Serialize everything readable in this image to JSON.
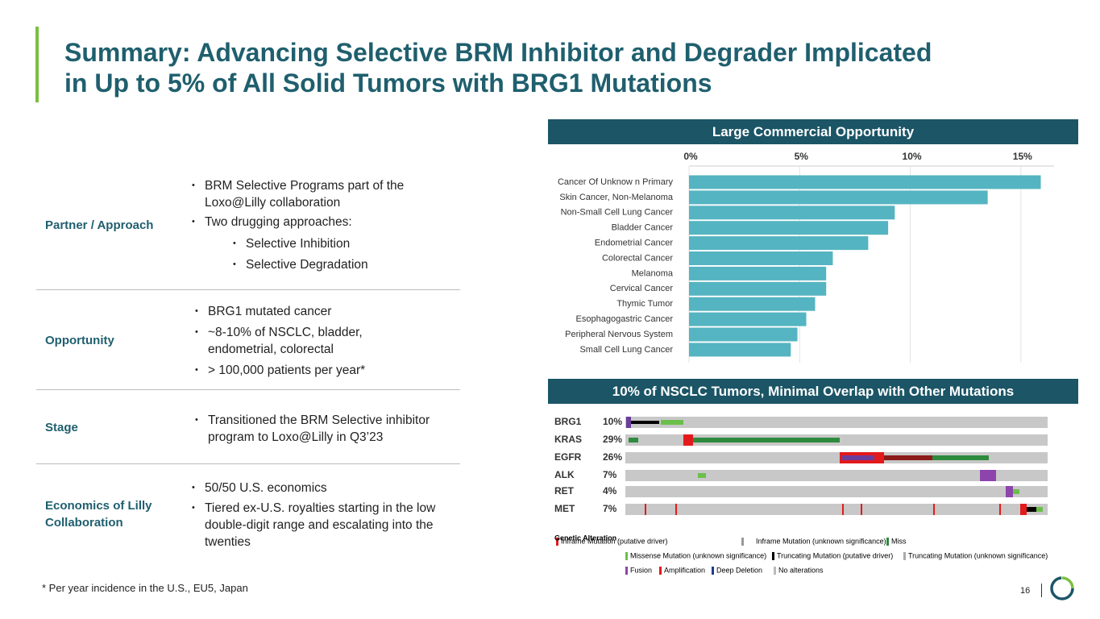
{
  "header": {
    "title_lines": [
      "Summary: Advancing Selective BRM Inhibitor and Degrader Implicated",
      "in Up to 5% of All Solid Tumors with BRG1 Mutations"
    ]
  },
  "table": {
    "rows": [
      {
        "label": "Partner / Approach",
        "bullets": [
          "BRM Selective Programs part of the Loxo@Lilly collaboration",
          "Two drugging approaches:"
        ],
        "sub_bullets": [
          "Selective Inhibition",
          "Selective Degradation"
        ]
      },
      {
        "label": "Opportunity",
        "bullets": [
          "BRG1 mutated cancer",
          "~8-10% of NSCLC, bladder, endometrial, colorectal",
          "> 100,000 patients per year*"
        ]
      },
      {
        "label": "Stage",
        "bullets": [
          "Transitioned the BRM Selective inhibitor program to Loxo@Lilly in Q3’23"
        ]
      },
      {
        "label": "Economics of Lilly Collaboration",
        "bullets": [
          "50/50 U.S. economics",
          "Tiered ex-U.S. royalties starting in the low double-digit range and escalating into the twenties"
        ]
      }
    ]
  },
  "footnote": "* Per year incidence in the U.S., EU5, Japan",
  "page_number": "16",
  "bar_chart": {
    "type": "bar",
    "title": "Large Commercial Opportunity",
    "color": "#55b4c1",
    "categories": [
      "Cancer Of Unknow n Primary",
      "Skin Cancer, Non-Melanoma",
      "Non-Small Cell Lung Cancer",
      "Bladder Cancer",
      "Endometrial Cancer",
      "Colorectal Cancer",
      "Melanoma",
      "Cervical Cancer",
      "Thymic Tumor",
      "Esophagogastric Cancer",
      "Peripheral Nervous System",
      "Small Cell Lung Cancer"
    ],
    "values": [
      15.9,
      13.5,
      9.3,
      9.0,
      8.1,
      6.5,
      6.2,
      6.2,
      5.7,
      5.3,
      4.9,
      4.6
    ],
    "xlim": [
      0,
      16.5
    ],
    "xticks": [
      {
        "value": 0,
        "label": "0%"
      },
      {
        "value": 5,
        "label": "5%"
      },
      {
        "value": 10,
        "label": "10%"
      },
      {
        "value": 15,
        "label": "15%"
      }
    ],
    "grid": true
  },
  "oncoprint": {
    "title": "10% of NSCLC Tumors, Minimal Overlap with Other Mutations",
    "rows": [
      {
        "gene": "BRG1",
        "percent": "10%"
      },
      {
        "gene": "KRAS",
        "percent": "29%"
      },
      {
        "gene": "EGFR",
        "percent": "26%"
      },
      {
        "gene": "ALK",
        "percent": "7%"
      },
      {
        "gene": "RET",
        "percent": "4%"
      },
      {
        "gene": "MET",
        "percent": "7%"
      }
    ],
    "legend": {
      "title": "Genetic Alteration",
      "items": [
        "Inframe Mutation (putative driver)",
        "Inframe Mutation (unknown significance)",
        "Miss",
        "Missense Mutation (unknown significance)",
        "Truncating Mutation (putative driver)",
        "Truncating Mutation (unknown significance)",
        "Fusion",
        "Amplification",
        "Deep Deletion",
        "No alterations"
      ]
    }
  }
}
